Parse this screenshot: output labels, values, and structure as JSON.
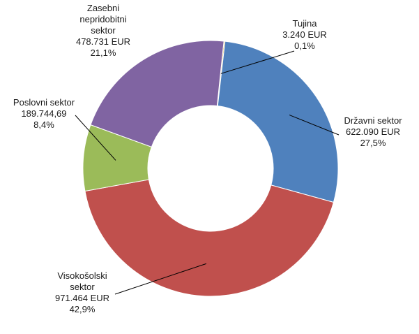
{
  "chart_data": {
    "type": "pie",
    "donut": true,
    "title": "",
    "legend": "none",
    "slices": [
      {
        "label_lines": [
          "Tujina",
          "3.240 EUR",
          "0,1%"
        ],
        "value": 3240,
        "percent": 0.1,
        "color": "#F0C040"
      },
      {
        "label_lines": [
          "Državni sektor",
          "622.090 EUR",
          "27,5%"
        ],
        "value": 622090,
        "percent": 27.5,
        "color": "#4F81BD"
      },
      {
        "label_lines": [
          "Visokošolski",
          "sektor",
          "971.464 EUR",
          "42,9%"
        ],
        "value": 971464,
        "percent": 42.9,
        "color": "#C0504D"
      },
      {
        "label_lines": [
          "Poslovni sektor",
          "189.744,69",
          "8,4%"
        ],
        "value": 189744.69,
        "percent": 8.4,
        "color": "#9BBB59"
      },
      {
        "label_lines": [
          "Zasebni",
          "nepridobitni",
          "sektor",
          "478.731 EUR",
          "21,1%"
        ],
        "value": 478731,
        "percent": 21.1,
        "color": "#8064A2"
      }
    ]
  }
}
